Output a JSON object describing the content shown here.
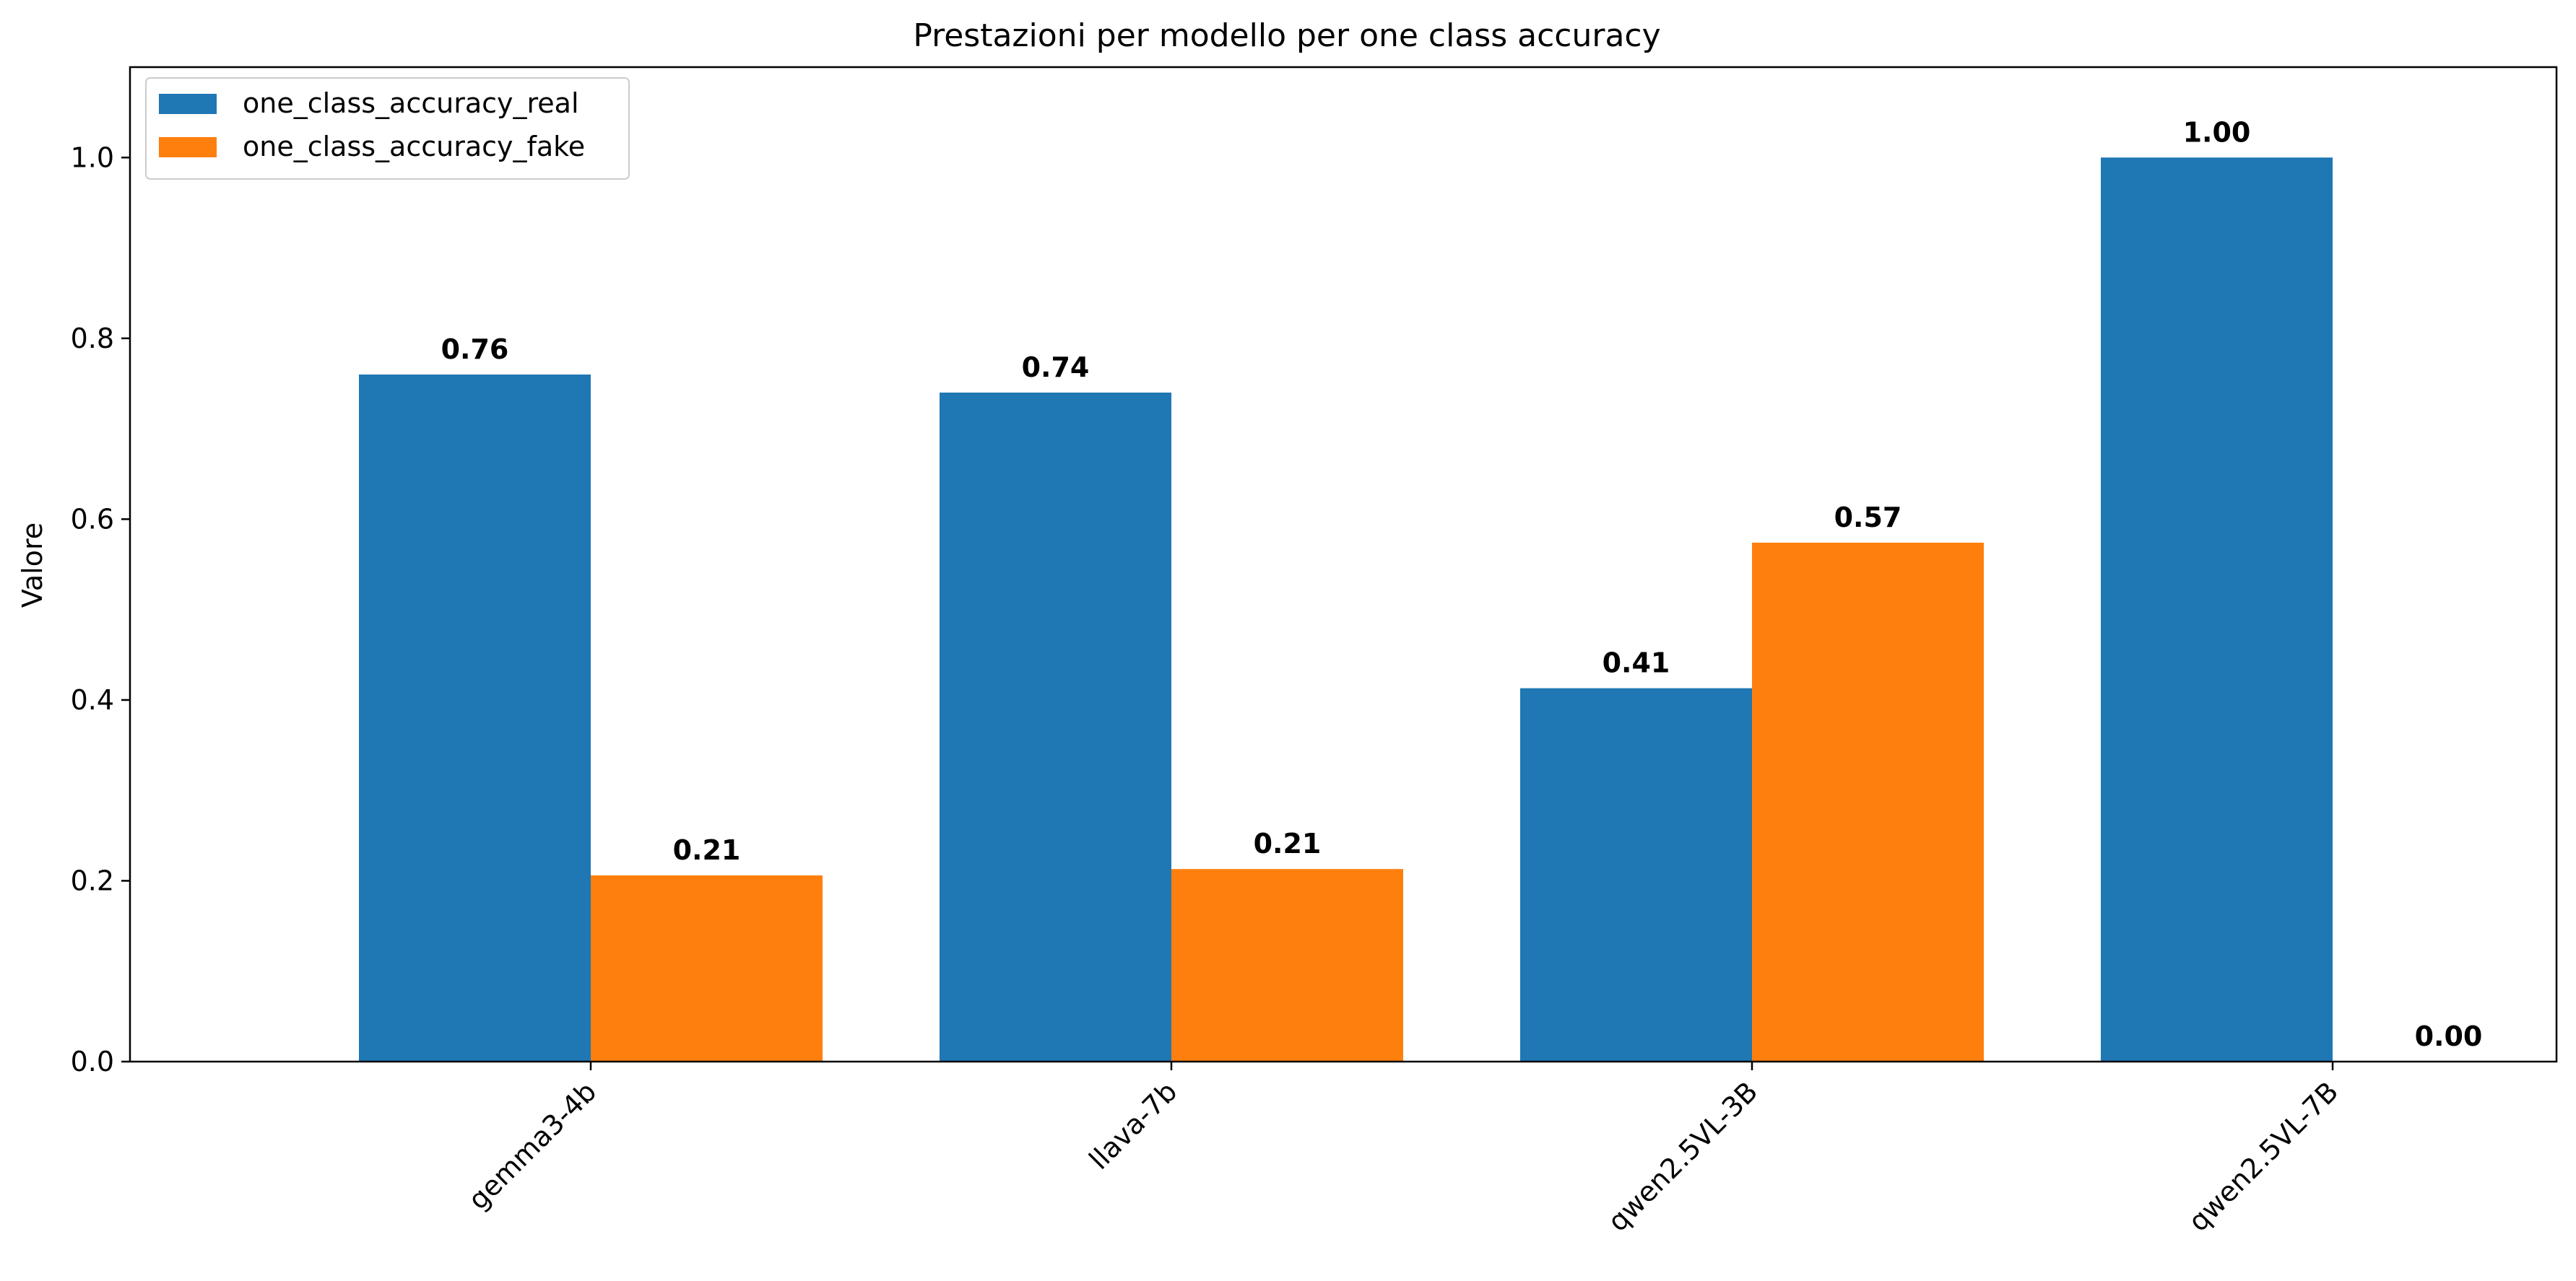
{
  "chart_data": {
    "type": "bar",
    "title": "Prestazioni per modello per one class accuracy",
    "xlabel": "",
    "ylabel": "Valore",
    "categories": [
      "gemma3-4b",
      "llava-7b",
      "qwen2.5VL-3B",
      "qwen2.5VL-7B"
    ],
    "series": [
      {
        "name": "one_class_accuracy_real",
        "color": "#1f77b4",
        "values": [
          0.76,
          0.74,
          0.413,
          1.0
        ],
        "labels": [
          "0.76",
          "0.74",
          "0.41",
          "1.00"
        ]
      },
      {
        "name": "one_class_accuracy_fake",
        "color": "#ff7f0e",
        "values": [
          0.206,
          0.213,
          0.574,
          0.0
        ],
        "labels": [
          "0.21",
          "0.21",
          "0.57",
          "0.00"
        ]
      }
    ],
    "ylim": [
      0,
      1.1
    ],
    "yticks": [
      0.0,
      0.2,
      0.4,
      0.6,
      0.8,
      1.0
    ],
    "ytick_labels": [
      "0.0",
      "0.2",
      "0.4",
      "0.6",
      "0.8",
      "1.0"
    ],
    "grid": false,
    "legend_position": "top-left"
  }
}
